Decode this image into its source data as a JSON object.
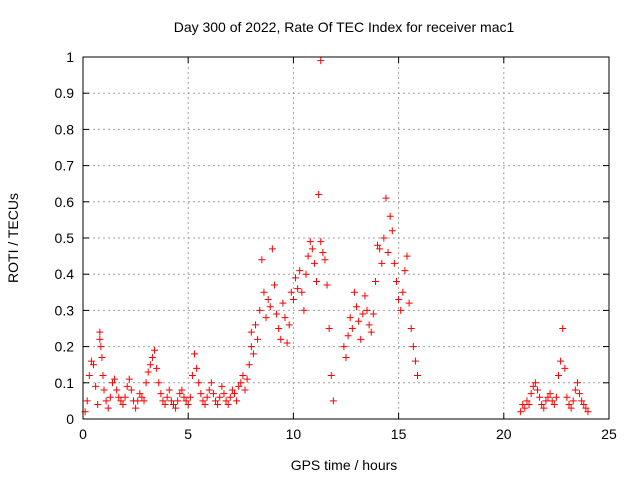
{
  "chart_data": {
    "type": "scatter",
    "title": "Day 300 of 2022, Rate Of TEC Index for receiver mac1",
    "xlabel": "GPS time / hours",
    "ylabel": "ROTI / TECUs",
    "xlim": [
      0,
      25
    ],
    "ylim": [
      0,
      1
    ],
    "xticks": [
      0,
      5,
      10,
      15,
      20,
      25
    ],
    "yticks": [
      0,
      0.1,
      0.2,
      0.3,
      0.4,
      0.5,
      0.6,
      0.7,
      0.8,
      0.9,
      1
    ],
    "grid": true,
    "marker": "+",
    "color": "#ff0000",
    "series": [
      {
        "points": [
          [
            0.1,
            0.02
          ],
          [
            0.2,
            0.05
          ],
          [
            0.3,
            0.12
          ],
          [
            0.4,
            0.16
          ],
          [
            0.5,
            0.15
          ],
          [
            0.6,
            0.09
          ],
          [
            0.7,
            0.04
          ],
          [
            0.8,
            0.24
          ],
          [
            0.8,
            0.22
          ],
          [
            0.85,
            0.2
          ],
          [
            0.9,
            0.17
          ],
          [
            0.95,
            0.12
          ],
          [
            1.0,
            0.08
          ],
          [
            1.1,
            0.05
          ],
          [
            1.2,
            0.03
          ],
          [
            1.3,
            0.06
          ],
          [
            1.4,
            0.1
          ],
          [
            1.5,
            0.11
          ],
          [
            1.6,
            0.08
          ],
          [
            1.7,
            0.06
          ],
          [
            1.8,
            0.05
          ],
          [
            1.9,
            0.04
          ],
          [
            2.0,
            0.06
          ],
          [
            2.1,
            0.09
          ],
          [
            2.2,
            0.11
          ],
          [
            2.3,
            0.08
          ],
          [
            2.4,
            0.05
          ],
          [
            2.5,
            0.03
          ],
          [
            2.6,
            0.05
          ],
          [
            2.7,
            0.07
          ],
          [
            2.8,
            0.06
          ],
          [
            2.9,
            0.05
          ],
          [
            3.0,
            0.1
          ],
          [
            3.1,
            0.13
          ],
          [
            3.2,
            0.15
          ],
          [
            3.3,
            0.17
          ],
          [
            3.4,
            0.19
          ],
          [
            3.5,
            0.14
          ],
          [
            3.6,
            0.1
          ],
          [
            3.7,
            0.07
          ],
          [
            3.8,
            0.05
          ],
          [
            3.9,
            0.04
          ],
          [
            4.0,
            0.06
          ],
          [
            4.1,
            0.08
          ],
          [
            4.2,
            0.05
          ],
          [
            4.3,
            0.04
          ],
          [
            4.4,
            0.03
          ],
          [
            4.5,
            0.05
          ],
          [
            4.6,
            0.07
          ],
          [
            4.7,
            0.08
          ],
          [
            4.8,
            0.06
          ],
          [
            4.9,
            0.05
          ],
          [
            5.0,
            0.04
          ],
          [
            5.1,
            0.06
          ],
          [
            5.2,
            0.12
          ],
          [
            5.3,
            0.18
          ],
          [
            5.4,
            0.14
          ],
          [
            5.5,
            0.1
          ],
          [
            5.6,
            0.07
          ],
          [
            5.7,
            0.05
          ],
          [
            5.8,
            0.04
          ],
          [
            5.9,
            0.06
          ],
          [
            6.0,
            0.08
          ],
          [
            6.1,
            0.1
          ],
          [
            6.2,
            0.07
          ],
          [
            6.3,
            0.05
          ],
          [
            6.4,
            0.04
          ],
          [
            6.5,
            0.06
          ],
          [
            6.6,
            0.09
          ],
          [
            6.7,
            0.07
          ],
          [
            6.8,
            0.05
          ],
          [
            6.9,
            0.04
          ],
          [
            7.0,
            0.06
          ],
          [
            7.1,
            0.08
          ],
          [
            7.2,
            0.07
          ],
          [
            7.3,
            0.05
          ],
          [
            7.4,
            0.09
          ],
          [
            7.5,
            0.1
          ],
          [
            7.6,
            0.12
          ],
          [
            7.7,
            0.08
          ],
          [
            7.8,
            0.11
          ],
          [
            7.9,
            0.15
          ],
          [
            8.0,
            0.2
          ],
          [
            8.0,
            0.24
          ],
          [
            8.1,
            0.18
          ],
          [
            8.2,
            0.26
          ],
          [
            8.3,
            0.22
          ],
          [
            8.4,
            0.3
          ],
          [
            8.5,
            0.44
          ],
          [
            8.6,
            0.35
          ],
          [
            8.7,
            0.28
          ],
          [
            8.8,
            0.33
          ],
          [
            8.9,
            0.31
          ],
          [
            9.0,
            0.47
          ],
          [
            9.1,
            0.37
          ],
          [
            9.2,
            0.29
          ],
          [
            9.3,
            0.25
          ],
          [
            9.4,
            0.22
          ],
          [
            9.5,
            0.32
          ],
          [
            9.6,
            0.28
          ],
          [
            9.7,
            0.21
          ],
          [
            9.8,
            0.26
          ],
          [
            9.9,
            0.35
          ],
          [
            10.0,
            0.33
          ],
          [
            10.1,
            0.39
          ],
          [
            10.2,
            0.36
          ],
          [
            10.3,
            0.41
          ],
          [
            10.4,
            0.35
          ],
          [
            10.5,
            0.3
          ],
          [
            10.6,
            0.4
          ],
          [
            10.7,
            0.45
          ],
          [
            10.8,
            0.49
          ],
          [
            10.9,
            0.47
          ],
          [
            11.0,
            0.43
          ],
          [
            11.1,
            0.38
          ],
          [
            11.2,
            0.62
          ],
          [
            11.3,
            0.99
          ],
          [
            11.3,
            0.49
          ],
          [
            11.4,
            0.46
          ],
          [
            11.5,
            0.44
          ],
          [
            11.6,
            0.37
          ],
          [
            11.7,
            0.25
          ],
          [
            11.8,
            0.12
          ],
          [
            11.9,
            0.05
          ],
          [
            12.4,
            0.2
          ],
          [
            12.5,
            0.17
          ],
          [
            12.6,
            0.23
          ],
          [
            12.7,
            0.28
          ],
          [
            12.8,
            0.25
          ],
          [
            12.9,
            0.35
          ],
          [
            13.0,
            0.31
          ],
          [
            13.1,
            0.27
          ],
          [
            13.2,
            0.22
          ],
          [
            13.3,
            0.29
          ],
          [
            13.4,
            0.34
          ],
          [
            13.5,
            0.3
          ],
          [
            13.6,
            0.26
          ],
          [
            13.7,
            0.24
          ],
          [
            13.8,
            0.29
          ],
          [
            13.9,
            0.38
          ],
          [
            14.0,
            0.48
          ],
          [
            14.1,
            0.47
          ],
          [
            14.2,
            0.43
          ],
          [
            14.3,
            0.5
          ],
          [
            14.4,
            0.61
          ],
          [
            14.5,
            0.46
          ],
          [
            14.6,
            0.56
          ],
          [
            14.7,
            0.52
          ],
          [
            14.8,
            0.43
          ],
          [
            14.9,
            0.38
          ],
          [
            15.0,
            0.33
          ],
          [
            15.1,
            0.3
          ],
          [
            15.2,
            0.35
          ],
          [
            15.3,
            0.41
          ],
          [
            15.4,
            0.45
          ],
          [
            15.5,
            0.32
          ],
          [
            15.6,
            0.25
          ],
          [
            15.7,
            0.2
          ],
          [
            15.8,
            0.16
          ],
          [
            15.9,
            0.12
          ],
          [
            20.8,
            0.02
          ],
          [
            20.9,
            0.04
          ],
          [
            21.0,
            0.03
          ],
          [
            21.1,
            0.05
          ],
          [
            21.2,
            0.04
          ],
          [
            21.3,
            0.07
          ],
          [
            21.4,
            0.09
          ],
          [
            21.5,
            0.1
          ],
          [
            21.6,
            0.08
          ],
          [
            21.7,
            0.06
          ],
          [
            21.8,
            0.04
          ],
          [
            21.9,
            0.03
          ],
          [
            22.0,
            0.05
          ],
          [
            22.1,
            0.06
          ],
          [
            22.2,
            0.07
          ],
          [
            22.3,
            0.05
          ],
          [
            22.4,
            0.04
          ],
          [
            22.5,
            0.06
          ],
          [
            22.6,
            0.12
          ],
          [
            22.7,
            0.16
          ],
          [
            22.8,
            0.25
          ],
          [
            22.9,
            0.14
          ],
          [
            23.0,
            0.06
          ],
          [
            23.1,
            0.04
          ],
          [
            23.2,
            0.03
          ],
          [
            23.3,
            0.05
          ],
          [
            23.4,
            0.08
          ],
          [
            23.5,
            0.1
          ],
          [
            23.6,
            0.07
          ],
          [
            23.7,
            0.05
          ],
          [
            23.8,
            0.04
          ],
          [
            23.9,
            0.03
          ],
          [
            24.0,
            0.02
          ]
        ]
      }
    ]
  }
}
